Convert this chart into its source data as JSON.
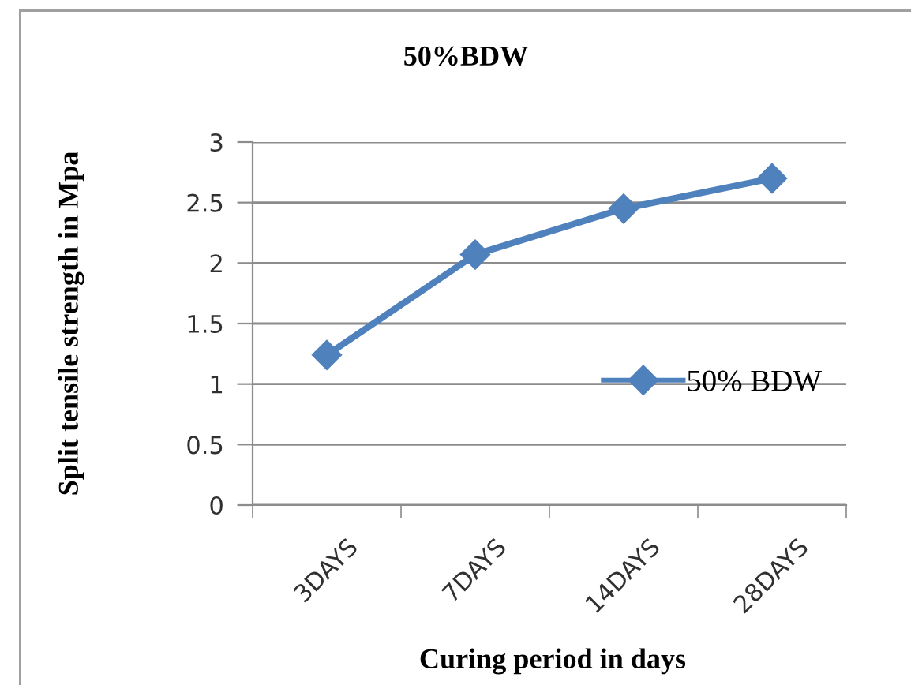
{
  "chart_data": {
    "type": "line",
    "title": "50%BDW",
    "xlabel": "Curing period in days",
    "ylabel": "Split tensile strength in Mpa",
    "categories": [
      "3DAYS",
      "7DAYS",
      "14DAYS",
      "28DAYS"
    ],
    "series": [
      {
        "name": "50% BDW",
        "color": "#4f81bd",
        "values": [
          1.24,
          2.07,
          2.45,
          2.7
        ]
      }
    ],
    "ylim": [
      0,
      3
    ],
    "yticks": [
      0,
      0.5,
      1,
      1.5,
      2,
      2.5,
      3
    ],
    "grid": "y",
    "legend": "right",
    "marker": "diamond",
    "line_style": "solid"
  }
}
